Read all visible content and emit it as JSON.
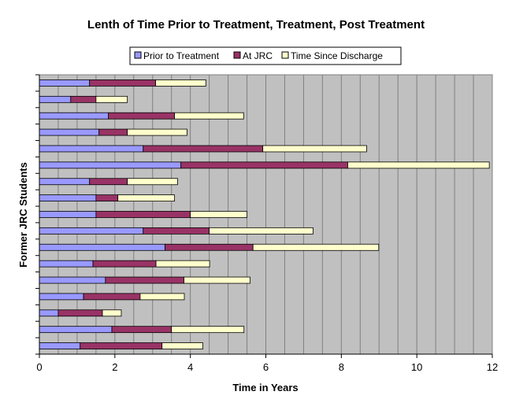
{
  "chart_data": {
    "type": "bar",
    "orientation": "horizontal",
    "stacked": true,
    "title": "Lenth of Time Prior to Treatment, Treatment, Post Treatment",
    "xlabel": "Time in Years",
    "ylabel": "Former JRC Students",
    "xlim": [
      0,
      12
    ],
    "x_ticks": [
      0,
      2,
      4,
      6,
      8,
      10,
      12
    ],
    "grid": "vertical minor gridlines every 0.5 year",
    "legend_position": "top",
    "series": [
      {
        "name": "Prior to Treatment",
        "color": "#9999ff",
        "values": [
          1.33,
          0.83,
          1.83,
          1.58,
          2.75,
          3.75,
          1.33,
          1.5,
          1.5,
          2.75,
          3.33,
          1.42,
          1.75,
          1.17,
          0.5,
          1.92,
          1.08
        ]
      },
      {
        "name": "At JRC",
        "color": "#993366",
        "values": [
          1.75,
          0.67,
          1.75,
          0.75,
          3.17,
          4.42,
          1.0,
          0.58,
          2.5,
          1.75,
          2.33,
          1.67,
          2.08,
          1.5,
          1.17,
          1.58,
          2.17
        ]
      },
      {
        "name": "Time Since Discharge",
        "color": "#ffffcc",
        "values": [
          1.33,
          0.83,
          1.83,
          1.58,
          2.75,
          3.75,
          1.33,
          1.5,
          1.5,
          2.75,
          3.33,
          1.42,
          1.75,
          1.17,
          0.5,
          1.92,
          1.08
        ]
      }
    ]
  }
}
